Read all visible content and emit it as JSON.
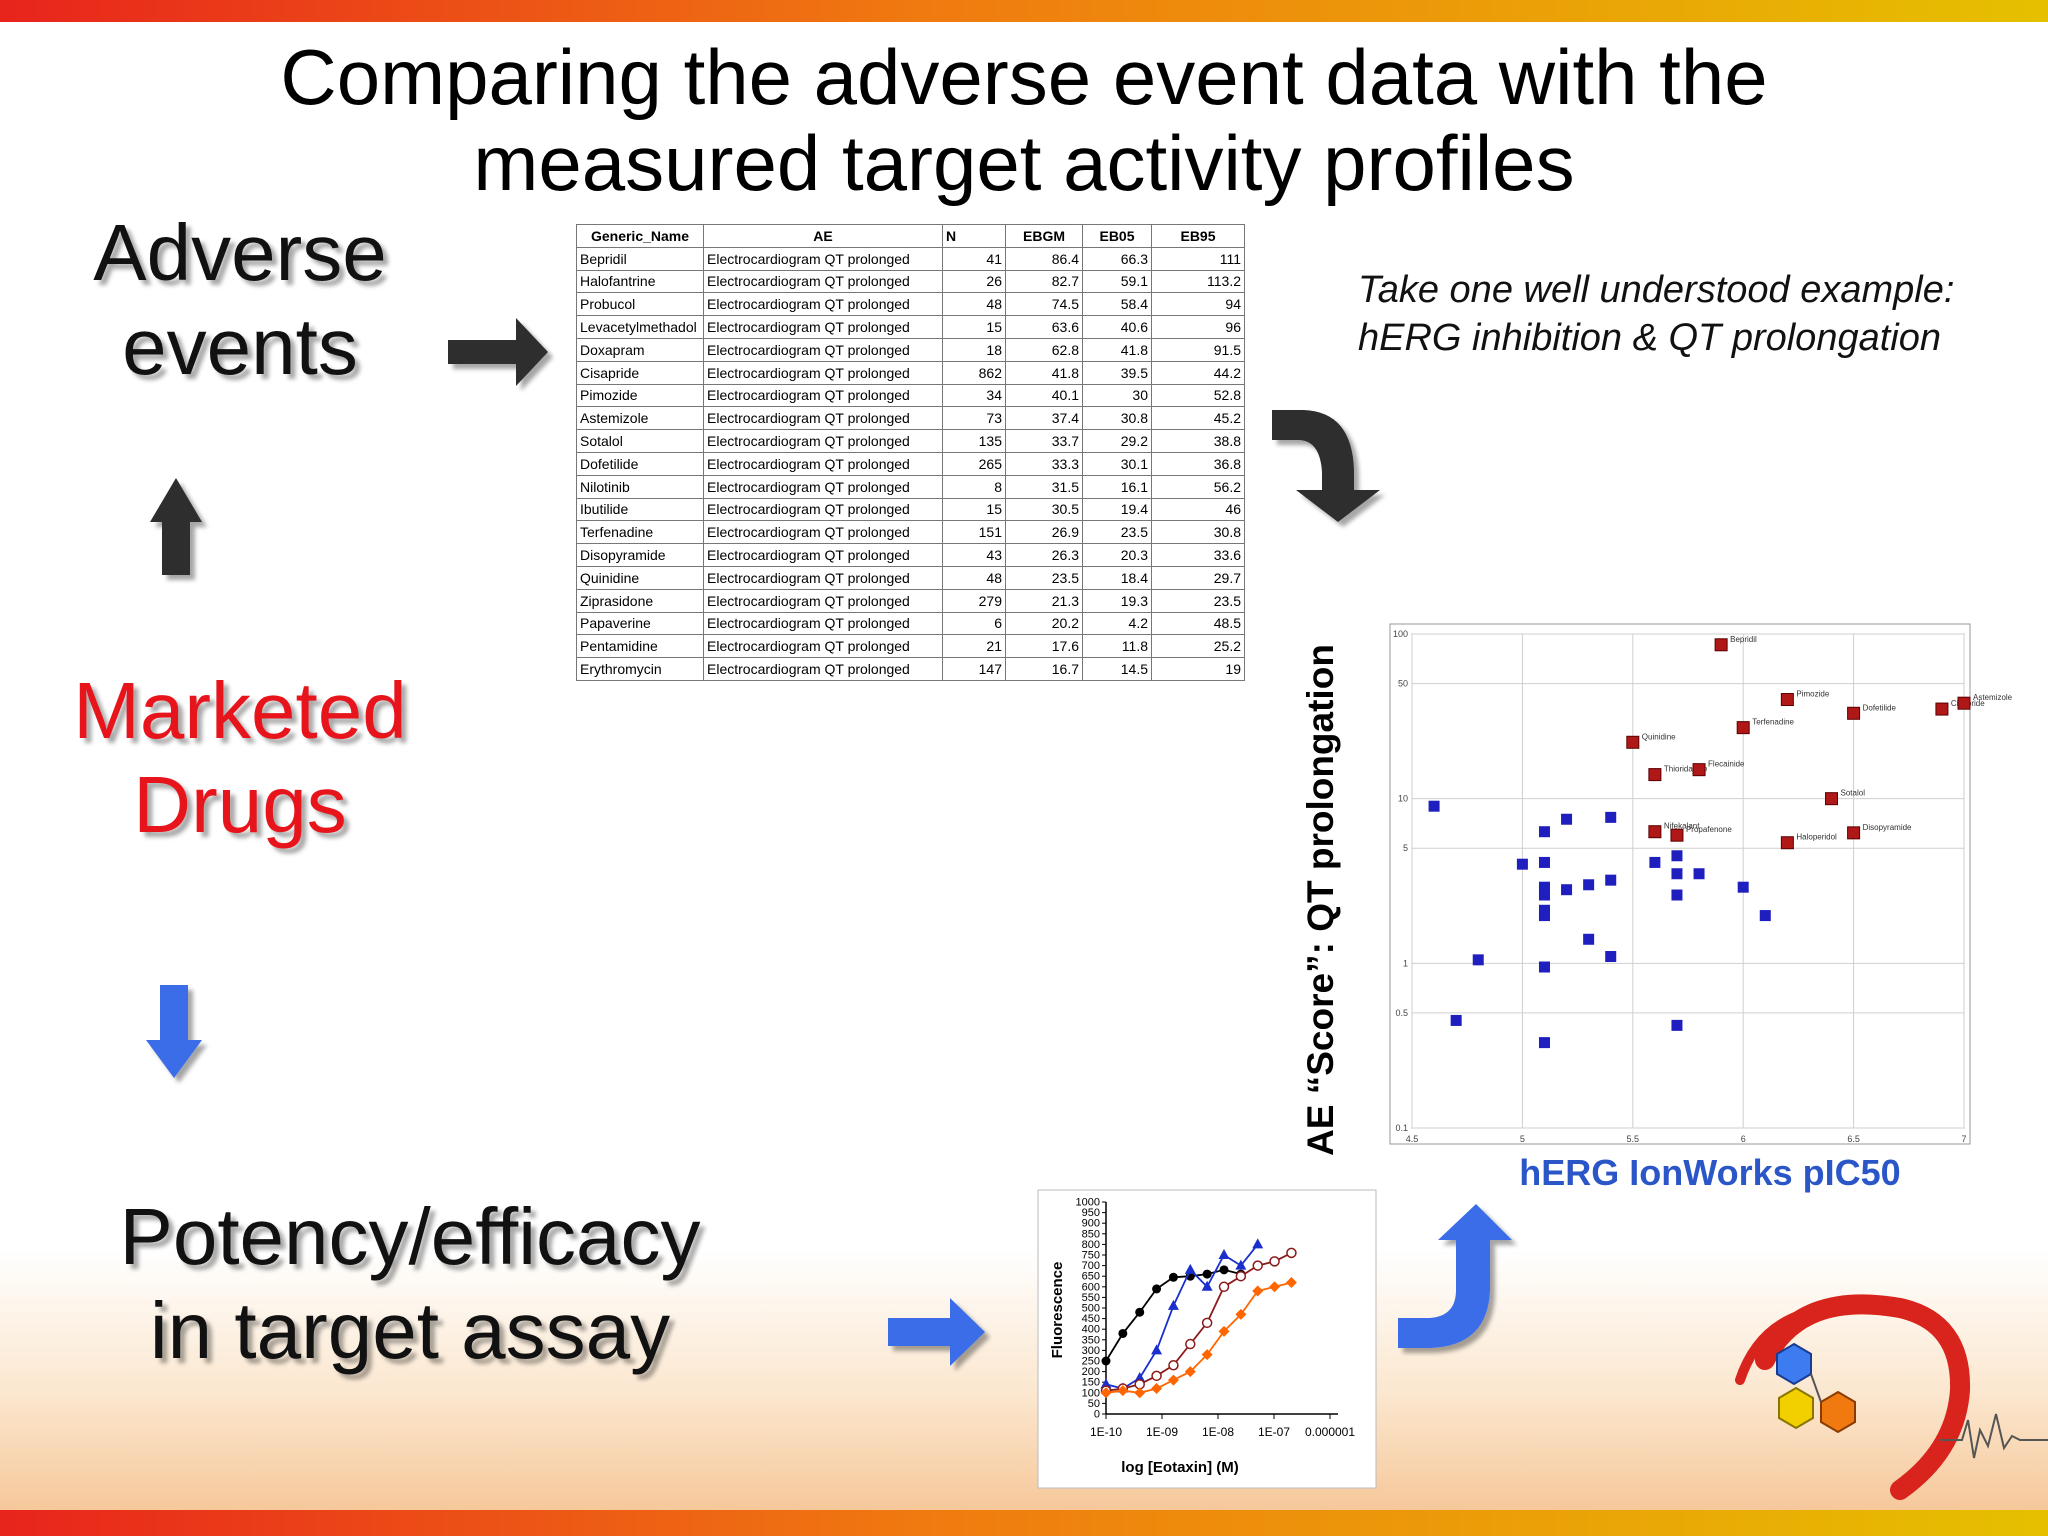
{
  "slide": {
    "title_line1": "Comparing the adverse event data with the",
    "title_line2": "measured target activity profiles",
    "label_adverse_1": "Adverse",
    "label_adverse_2": "events",
    "label_marketed_1": "Marketed",
    "label_marketed_2": "Drugs",
    "label_potency_1": "Potency/efficacy",
    "label_potency_2": "in target assay",
    "note_line1": "Take one well understood example:",
    "note_line2": "hERG inhibition & QT prolongation",
    "colors": {
      "accent_red": "#e8241c",
      "accent_blue": "#2b56c8",
      "bar_orange": "#f07a10"
    },
    "icons": [
      "arrow-right-icon",
      "arrow-up-icon",
      "arrow-down-icon",
      "curved-arrow-down-icon",
      "curved-arrow-up-icon",
      "logo-icon"
    ]
  },
  "table": {
    "headers": [
      "Generic_Name",
      "AE",
      "N",
      "EBGM",
      "EB05",
      "EB95"
    ],
    "rows": [
      [
        "Bepridil",
        "Electrocardiogram QT prolonged",
        "41",
        "86.4",
        "66.3",
        "111"
      ],
      [
        "Halofantrine",
        "Electrocardiogram QT prolonged",
        "26",
        "82.7",
        "59.1",
        "113.2"
      ],
      [
        "Probucol",
        "Electrocardiogram QT prolonged",
        "48",
        "74.5",
        "58.4",
        "94"
      ],
      [
        "Levacetylmethadol",
        "Electrocardiogram QT prolonged",
        "15",
        "63.6",
        "40.6",
        "96"
      ],
      [
        "Doxapram",
        "Electrocardiogram QT prolonged",
        "18",
        "62.8",
        "41.8",
        "91.5"
      ],
      [
        "Cisapride",
        "Electrocardiogram QT prolonged",
        "862",
        "41.8",
        "39.5",
        "44.2"
      ],
      [
        "Pimozide",
        "Electrocardiogram QT prolonged",
        "34",
        "40.1",
        "30",
        "52.8"
      ],
      [
        "Astemizole",
        "Electrocardiogram QT prolonged",
        "73",
        "37.4",
        "30.8",
        "45.2"
      ],
      [
        "Sotalol",
        "Electrocardiogram QT prolonged",
        "135",
        "33.7",
        "29.2",
        "38.8"
      ],
      [
        "Dofetilide",
        "Electrocardiogram QT prolonged",
        "265",
        "33.3",
        "30.1",
        "36.8"
      ],
      [
        "Nilotinib",
        "Electrocardiogram QT prolonged",
        "8",
        "31.5",
        "16.1",
        "56.2"
      ],
      [
        "Ibutilide",
        "Electrocardiogram QT prolonged",
        "15",
        "30.5",
        "19.4",
        "46"
      ],
      [
        "Terfenadine",
        "Electrocardiogram QT prolonged",
        "151",
        "26.9",
        "23.5",
        "30.8"
      ],
      [
        "Disopyramide",
        "Electrocardiogram QT prolonged",
        "43",
        "26.3",
        "20.3",
        "33.6"
      ],
      [
        "Quinidine",
        "Electrocardiogram QT prolonged",
        "48",
        "23.5",
        "18.4",
        "29.7"
      ],
      [
        "Ziprasidone",
        "Electrocardiogram QT prolonged",
        "279",
        "21.3",
        "19.3",
        "23.5"
      ],
      [
        "Papaverine",
        "Electrocardiogram QT prolonged",
        "6",
        "20.2",
        "4.2",
        "48.5"
      ],
      [
        "Pentamidine",
        "Electrocardiogram QT prolonged",
        "21",
        "17.6",
        "11.8",
        "25.2"
      ],
      [
        "Erythromycin",
        "Electrocardiogram QT prolonged",
        "147",
        "16.7",
        "14.5",
        "19"
      ]
    ]
  },
  "chart_data": [
    {
      "type": "scatter",
      "title": "",
      "xlabel": "hERG IonWorks pIC50",
      "ylabel": "AE “Score”: QT prolongation",
      "x_ticks": [
        "4.5",
        "5",
        "5.5",
        "6",
        "6.5",
        "7"
      ],
      "y_ticks": [
        "0.1",
        "0.5",
        "1",
        "5",
        "10",
        "50",
        "100"
      ],
      "xlim": [
        4.5,
        7
      ],
      "ylim": [
        0.1,
        100
      ],
      "y_scale": "log",
      "grid": true,
      "series": [
        {
          "name": "",
          "color": "#b01818",
          "points": [
            {
              "x": 5.9,
              "y": 86,
              "label": "Bepridil"
            },
            {
              "x": 6.2,
              "y": 40,
              "label": "Pimozide"
            },
            {
              "x": 6.5,
              "y": 33,
              "label": "Dofetilide"
            },
            {
              "x": 6.9,
              "y": 35,
              "label": "Cisapride"
            },
            {
              "x": 7.0,
              "y": 38,
              "label": "Astemizole"
            },
            {
              "x": 6.0,
              "y": 27,
              "label": "Terfenadine"
            },
            {
              "x": 5.5,
              "y": 22,
              "label": "Quinidine"
            },
            {
              "x": 5.6,
              "y": 14,
              "label": "Thioridazine"
            },
            {
              "x": 5.8,
              "y": 15,
              "label": "Flecainide"
            },
            {
              "x": 6.4,
              "y": 10,
              "label": "Sotalol"
            },
            {
              "x": 5.6,
              "y": 6.3,
              "label": "Nifekalant"
            },
            {
              "x": 5.7,
              "y": 6,
              "label": "Propafenone"
            },
            {
              "x": 6.2,
              "y": 5.4,
              "label": "Haloperidol"
            },
            {
              "x": 6.5,
              "y": 6.2,
              "label": "Disopyramide"
            }
          ]
        },
        {
          "name": "",
          "color": "#1f1fc0",
          "points": [
            {
              "x": 4.6,
              "y": 9
            },
            {
              "x": 4.7,
              "y": 0.45
            },
            {
              "x": 4.8,
              "y": 1.05
            },
            {
              "x": 5.0,
              "y": 4
            },
            {
              "x": 5.1,
              "y": 6.3
            },
            {
              "x": 5.1,
              "y": 4.1
            },
            {
              "x": 5.1,
              "y": 2.9
            },
            {
              "x": 5.1,
              "y": 2.6
            },
            {
              "x": 5.1,
              "y": 2.1
            },
            {
              "x": 5.1,
              "y": 1.95
            },
            {
              "x": 5.1,
              "y": 0.95
            },
            {
              "x": 5.1,
              "y": 0.33
            },
            {
              "x": 5.2,
              "y": 7.5
            },
            {
              "x": 5.2,
              "y": 2.8
            },
            {
              "x": 5.3,
              "y": 3.0
            },
            {
              "x": 5.3,
              "y": 1.4
            },
            {
              "x": 5.4,
              "y": 7.7
            },
            {
              "x": 5.4,
              "y": 3.2
            },
            {
              "x": 5.4,
              "y": 1.1
            },
            {
              "x": 5.6,
              "y": 4.1
            },
            {
              "x": 5.7,
              "y": 4.5
            },
            {
              "x": 5.7,
              "y": 3.5
            },
            {
              "x": 5.7,
              "y": 2.6
            },
            {
              "x": 5.7,
              "y": 0.42
            },
            {
              "x": 5.8,
              "y": 3.5
            },
            {
              "x": 6.0,
              "y": 2.9
            },
            {
              "x": 6.1,
              "y": 1.95
            }
          ]
        }
      ]
    },
    {
      "type": "line",
      "title": "",
      "xlabel": "log [Eotaxin] (M)",
      "ylabel": "Fluorescence",
      "x_ticks": [
        "1E-10",
        "1E-09",
        "1E-08",
        "1E-07",
        "0.000001"
      ],
      "y_ticks": [
        "0",
        "50",
        "100",
        "150",
        "200",
        "250",
        "300",
        "350",
        "400",
        "450",
        "500",
        "550",
        "600",
        "650",
        "700",
        "750",
        "800",
        "850",
        "900",
        "950",
        "1000"
      ],
      "xlim": [
        1e-10,
        1e-06
      ],
      "ylim": [
        0,
        1000
      ],
      "x_scale": "log",
      "grid": false,
      "series": [
        {
          "name": "",
          "color": "#000000",
          "marker": "circle-filled",
          "x": [
            1e-10,
            2e-10,
            4e-10,
            8e-10,
            1.6e-09,
            3.2e-09,
            6.4e-09,
            1.28e-08,
            2.56e-08
          ],
          "y": [
            250,
            380,
            480,
            590,
            645,
            650,
            660,
            680,
            660
          ]
        },
        {
          "name": "",
          "color": "#1a2fcc",
          "marker": "triangle",
          "x": [
            1e-10,
            2e-10,
            4e-10,
            8e-10,
            1.6e-09,
            3.2e-09,
            6.4e-09,
            1.28e-08,
            2.56e-08,
            5.12e-08
          ],
          "y": [
            140,
            120,
            170,
            300,
            510,
            680,
            600,
            750,
            700,
            800
          ]
        },
        {
          "name": "",
          "color": "#8b1a1a",
          "marker": "circle-open",
          "x": [
            1e-10,
            2e-10,
            4e-10,
            8e-10,
            1.6e-09,
            3.2e-09,
            6.4e-09,
            1.28e-08,
            2.56e-08,
            5.12e-08,
            1.024e-07,
            2.048e-07
          ],
          "y": [
            110,
            120,
            140,
            180,
            230,
            330,
            430,
            600,
            650,
            700,
            720,
            760
          ]
        },
        {
          "name": "",
          "color": "#ff6600",
          "marker": "diamond",
          "x": [
            1e-10,
            2e-10,
            4e-10,
            8e-10,
            1.6e-09,
            3.2e-09,
            6.4e-09,
            1.28e-08,
            2.56e-08,
            5.12e-08,
            1.024e-07,
            2.048e-07
          ],
          "y": [
            100,
            110,
            100,
            120,
            160,
            200,
            280,
            390,
            470,
            580,
            600,
            620
          ]
        }
      ]
    }
  ]
}
